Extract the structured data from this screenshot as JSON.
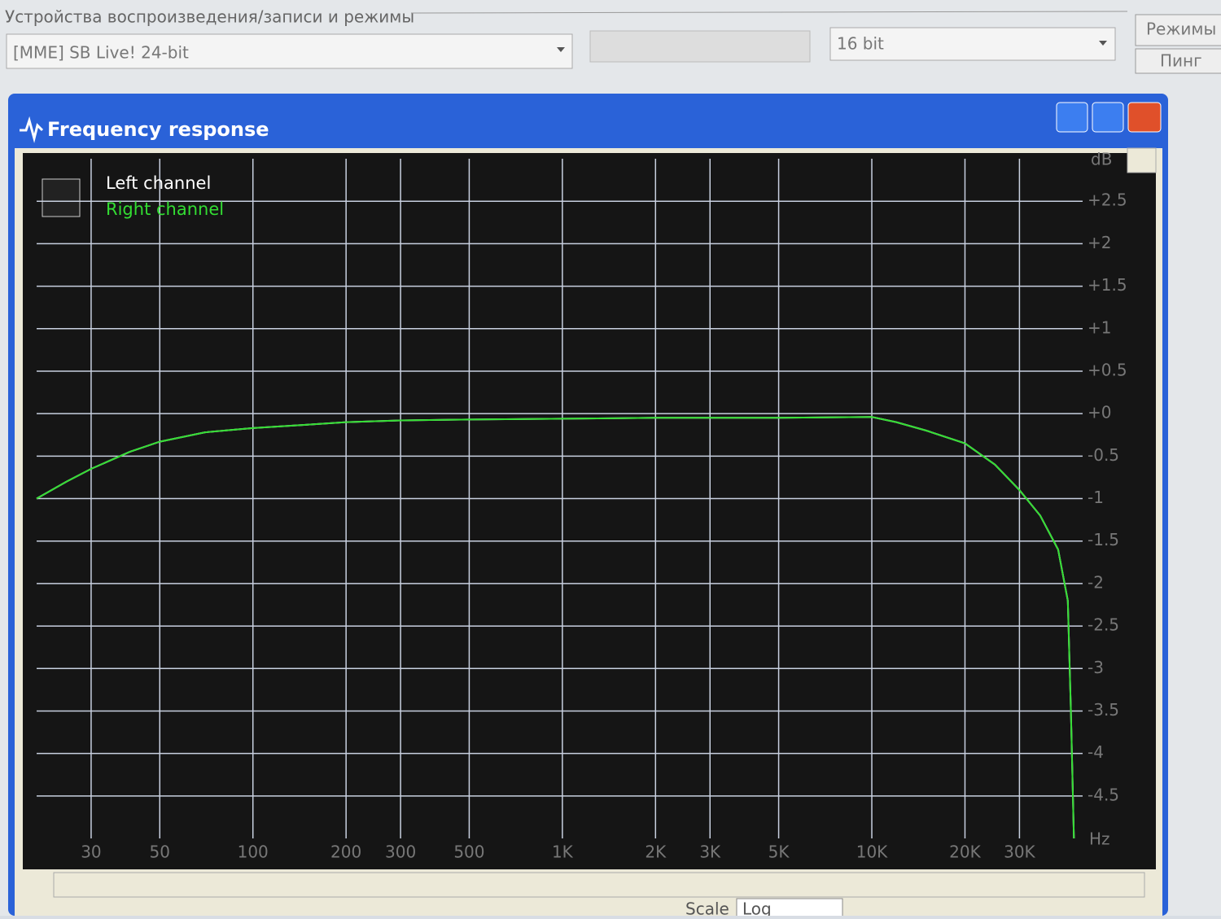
{
  "ui": {
    "group_label": "Устройства воспроизведения/записи и режимы",
    "device": "[MME] SB Live! 24-bit",
    "bits": "16 bit",
    "modes_button": "Режимы",
    "ping_button": "Пинг",
    "window_title": "Frequency response",
    "scale_label": "Scale",
    "scale_value": "Log"
  },
  "chart_data": {
    "type": "line",
    "x_label": "Hz",
    "y_label": "dB",
    "x": [
      20,
      25,
      30,
      40,
      50,
      70,
      100,
      150,
      200,
      300,
      500,
      1000,
      2000,
      3000,
      5000,
      10000,
      12000,
      15000,
      20000,
      25000,
      30000,
      35000,
      40000,
      43000,
      44000,
      45000
    ],
    "series": [
      {
        "name": "Left channel",
        "color": "#ffffff",
        "values": [
          -1.0,
          -0.8,
          -0.65,
          -0.45,
          -0.33,
          -0.22,
          -0.17,
          -0.13,
          -0.1,
          -0.08,
          -0.07,
          -0.06,
          -0.05,
          -0.05,
          -0.05,
          -0.04,
          -0.1,
          -0.2,
          -0.35,
          -0.6,
          -0.9,
          -1.2,
          -1.6,
          -2.2,
          -3.5,
          -5
        ]
      },
      {
        "name": "Right channel",
        "color": "#33dd33",
        "values": [
          -1.0,
          -0.8,
          -0.65,
          -0.45,
          -0.33,
          -0.22,
          -0.17,
          -0.13,
          -0.1,
          -0.08,
          -0.07,
          -0.06,
          -0.05,
          -0.05,
          -0.05,
          -0.04,
          -0.1,
          -0.2,
          -0.35,
          -0.6,
          -0.9,
          -1.2,
          -1.6,
          -2.2,
          -3.5,
          -5
        ]
      }
    ],
    "xlim": [
      20,
      48000
    ],
    "ylim": [
      -5,
      3
    ],
    "log_x": true,
    "grid": true,
    "xticks": [
      30,
      50,
      100,
      200,
      300,
      500,
      {
        "value": 1000,
        "label": "1K"
      },
      {
        "value": 2000,
        "label": "2K"
      },
      {
        "value": 3000,
        "label": "3K"
      },
      {
        "value": 5000,
        "label": "5K"
      },
      {
        "value": 10000,
        "label": "10K"
      },
      {
        "value": 20000,
        "label": "20K"
      },
      {
        "value": 30000,
        "label": "30K"
      }
    ],
    "yticks": [
      {
        "value": 2.5,
        "label": "+2.5"
      },
      {
        "value": 2,
        "label": "+2"
      },
      {
        "value": 1.5,
        "label": "+1.5"
      },
      {
        "value": 1,
        "label": "+1"
      },
      {
        "value": 0.5,
        "label": "+0.5"
      },
      {
        "value": 0,
        "label": "+0"
      },
      -0.5,
      -1,
      -1.5,
      -2,
      -2.5,
      -3,
      -3.5,
      -4,
      -4.5
    ]
  }
}
